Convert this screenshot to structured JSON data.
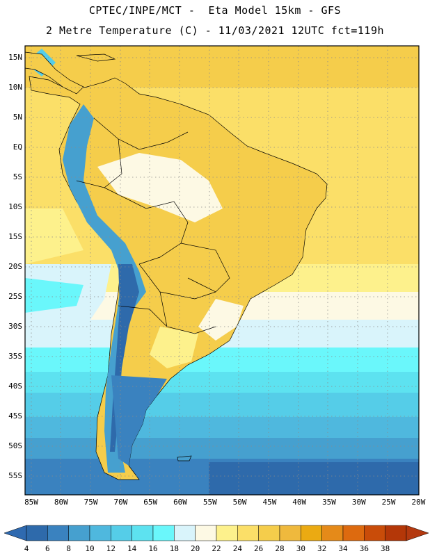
{
  "header": {
    "line1": "CPTEC/INPE/MCT -  Eta Model 15km - GFS",
    "line2": "2 Metre Temperature (C) - 11/03/2021 12UTC fct=119h"
  },
  "map": {
    "region": "South America",
    "lat_labels": [
      "15N",
      "10N",
      "5N",
      "EQ",
      "5S",
      "10S",
      "15S",
      "20S",
      "25S",
      "30S",
      "35S",
      "40S",
      "45S",
      "50S",
      "55S"
    ],
    "lon_labels": [
      "85W",
      "80W",
      "75W",
      "70W",
      "65W",
      "60W",
      "55W",
      "50W",
      "45W",
      "40W",
      "35W",
      "30W",
      "25W",
      "20W"
    ],
    "lon_range_deg": [
      -86,
      -20
    ],
    "lat_range_deg": [
      -58,
      17
    ]
  },
  "colorbar": {
    "labels": [
      "4",
      "6",
      "8",
      "10",
      "12",
      "14",
      "16",
      "18",
      "20",
      "22",
      "24",
      "26",
      "28",
      "30",
      "32",
      "34",
      "36",
      "38"
    ],
    "colors": [
      "#2e6aab",
      "#3a82bf",
      "#46a0cf",
      "#4fb8de",
      "#55cde8",
      "#5de2f0",
      "#6af7fb",
      "#d9f4fb",
      "#fdf9e4",
      "#fdf18c",
      "#fbdf68",
      "#f5cd4b",
      "#efb93d",
      "#ebaa12",
      "#e58a19",
      "#dd6a0f",
      "#c94c09",
      "#b43708"
    ],
    "low_end_color": "#2f6ab0",
    "high_end_color": "#b4390f"
  },
  "palette": {
    "ocean_south_dark": "#2e6aab",
    "ocean_south_mid": "#3a82bf",
    "ocean_cyan": "#5de2f0",
    "ocean_light": "#d9f4fb",
    "ocean_warm": "#fbdf68",
    "land_warm": "#f5cd4b",
    "land_pale": "#fdf9e4",
    "andes": "#3a82bf",
    "border": "#000000"
  }
}
